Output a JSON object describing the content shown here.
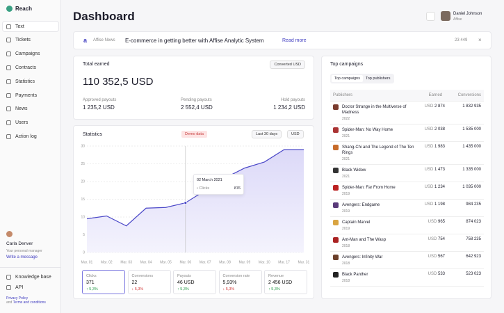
{
  "sidebar": {
    "brand": "Reach",
    "nav": [
      "Text",
      "Tickets",
      "Campaigns",
      "Contracts",
      "Statistics",
      "Payments",
      "News",
      "Users",
      "Action log"
    ],
    "manager": {
      "name": "Carla Denver",
      "role": "Your personal manager",
      "link": "Write a message"
    },
    "bottom": [
      "Knowledge base",
      "API"
    ],
    "footer": {
      "privacy": "Privacy Policy",
      "and": "and",
      "terms": "Terms and conditions"
    }
  },
  "header": {
    "title": "Dashboard",
    "user": "Daniel Johnson",
    "company": "Affise"
  },
  "news": {
    "source": "Affise News",
    "headline": "E-commerce in getting better with Affise Analytic System",
    "link": "Read more",
    "views": "23 449"
  },
  "earned": {
    "title": "Total earned",
    "button": "Converted USD",
    "amount": "110 352,5 USD",
    "payouts": [
      {
        "label": "Approved payouts",
        "value": "1 235,2 USD"
      },
      {
        "label": "Pending payouts",
        "value": "2 552,4 USD"
      },
      {
        "label": "Hold payouts",
        "value": "1 234,2 USD"
      }
    ]
  },
  "statistics": {
    "title": "Statistics",
    "badge": "Demo data",
    "range": "Last 30 days",
    "currency": "USD",
    "tooltip": {
      "date": "02 March 2021",
      "label": "Clicks",
      "value": 876
    },
    "kpis": [
      {
        "label": "Clicks",
        "value": "371",
        "change": "5,3%",
        "trend": "up"
      },
      {
        "label": "Conversions",
        "value": "22",
        "change": "5,3%",
        "trend": "down"
      },
      {
        "label": "Payouts",
        "value": "46 USD",
        "change": "5,3%",
        "trend": "up"
      },
      {
        "label": "Conversion rate",
        "value": "5,93%",
        "change": "5,3%",
        "trend": "down"
      },
      {
        "label": "Revenue",
        "value": "2 456 USD",
        "change": "5,3%",
        "trend": "up"
      }
    ]
  },
  "chart_data": {
    "type": "line",
    "categories": [
      "Mar. 01",
      "Mar. 02",
      "Mar. 03",
      "Mar. 04",
      "Mar. 05",
      "Mar. 06",
      "Mar. 07",
      "Mar. 08",
      "Mar. 09",
      "Mar. 10",
      "Mar. 17",
      "Mar. 31"
    ],
    "values": [
      9.5,
      10.3,
      7.5,
      12.5,
      12.7,
      14,
      17.5,
      21,
      23.8,
      25.5,
      29,
      29
    ],
    "color": "#4b48c8",
    "ylim": [
      0,
      30
    ],
    "yticks": [
      0,
      5,
      10,
      15,
      20,
      25,
      30
    ],
    "grid": true
  },
  "campaigns": {
    "title": "Top campaigns",
    "tabs": [
      "Top campaigns",
      "Top publishers"
    ],
    "columns": [
      "Publishers",
      "Earned",
      "Conversions"
    ],
    "currency": "USD",
    "rows": [
      {
        "name": "Doctor Strange in the Multiverse of Madness",
        "year": "2022",
        "earned": "2 874",
        "conversions": "1 832 935"
      },
      {
        "name": "Spider-Man: No Way Home",
        "year": "2021",
        "earned": "2 038",
        "conversions": "1 535 000"
      },
      {
        "name": "Shang-Chi and The Legend of The Ten Rings",
        "year": "2021",
        "earned": "1 983",
        "conversions": "1 435 000"
      },
      {
        "name": "Black Widow",
        "year": "2021",
        "earned": "1 473",
        "conversions": "1 335 000"
      },
      {
        "name": "Spider-Man: Far From Home",
        "year": "2019",
        "earned": "1 234",
        "conversions": "1 035 000"
      },
      {
        "name": "Avengers: Endgame",
        "year": "2019",
        "earned": "1 198",
        "conversions": "984 235"
      },
      {
        "name": "Captain Marvel",
        "year": "2019",
        "earned": "965",
        "conversions": "874 023"
      },
      {
        "name": "Ant-Man and The Wasp",
        "year": "2018",
        "earned": "754",
        "conversions": "758 235"
      },
      {
        "name": "Avengers: Infinity War",
        "year": "2018",
        "earned": "567",
        "conversions": "642 923"
      },
      {
        "name": "Black Panther",
        "year": "2018",
        "earned": "533",
        "conversions": "523 023"
      }
    ]
  }
}
